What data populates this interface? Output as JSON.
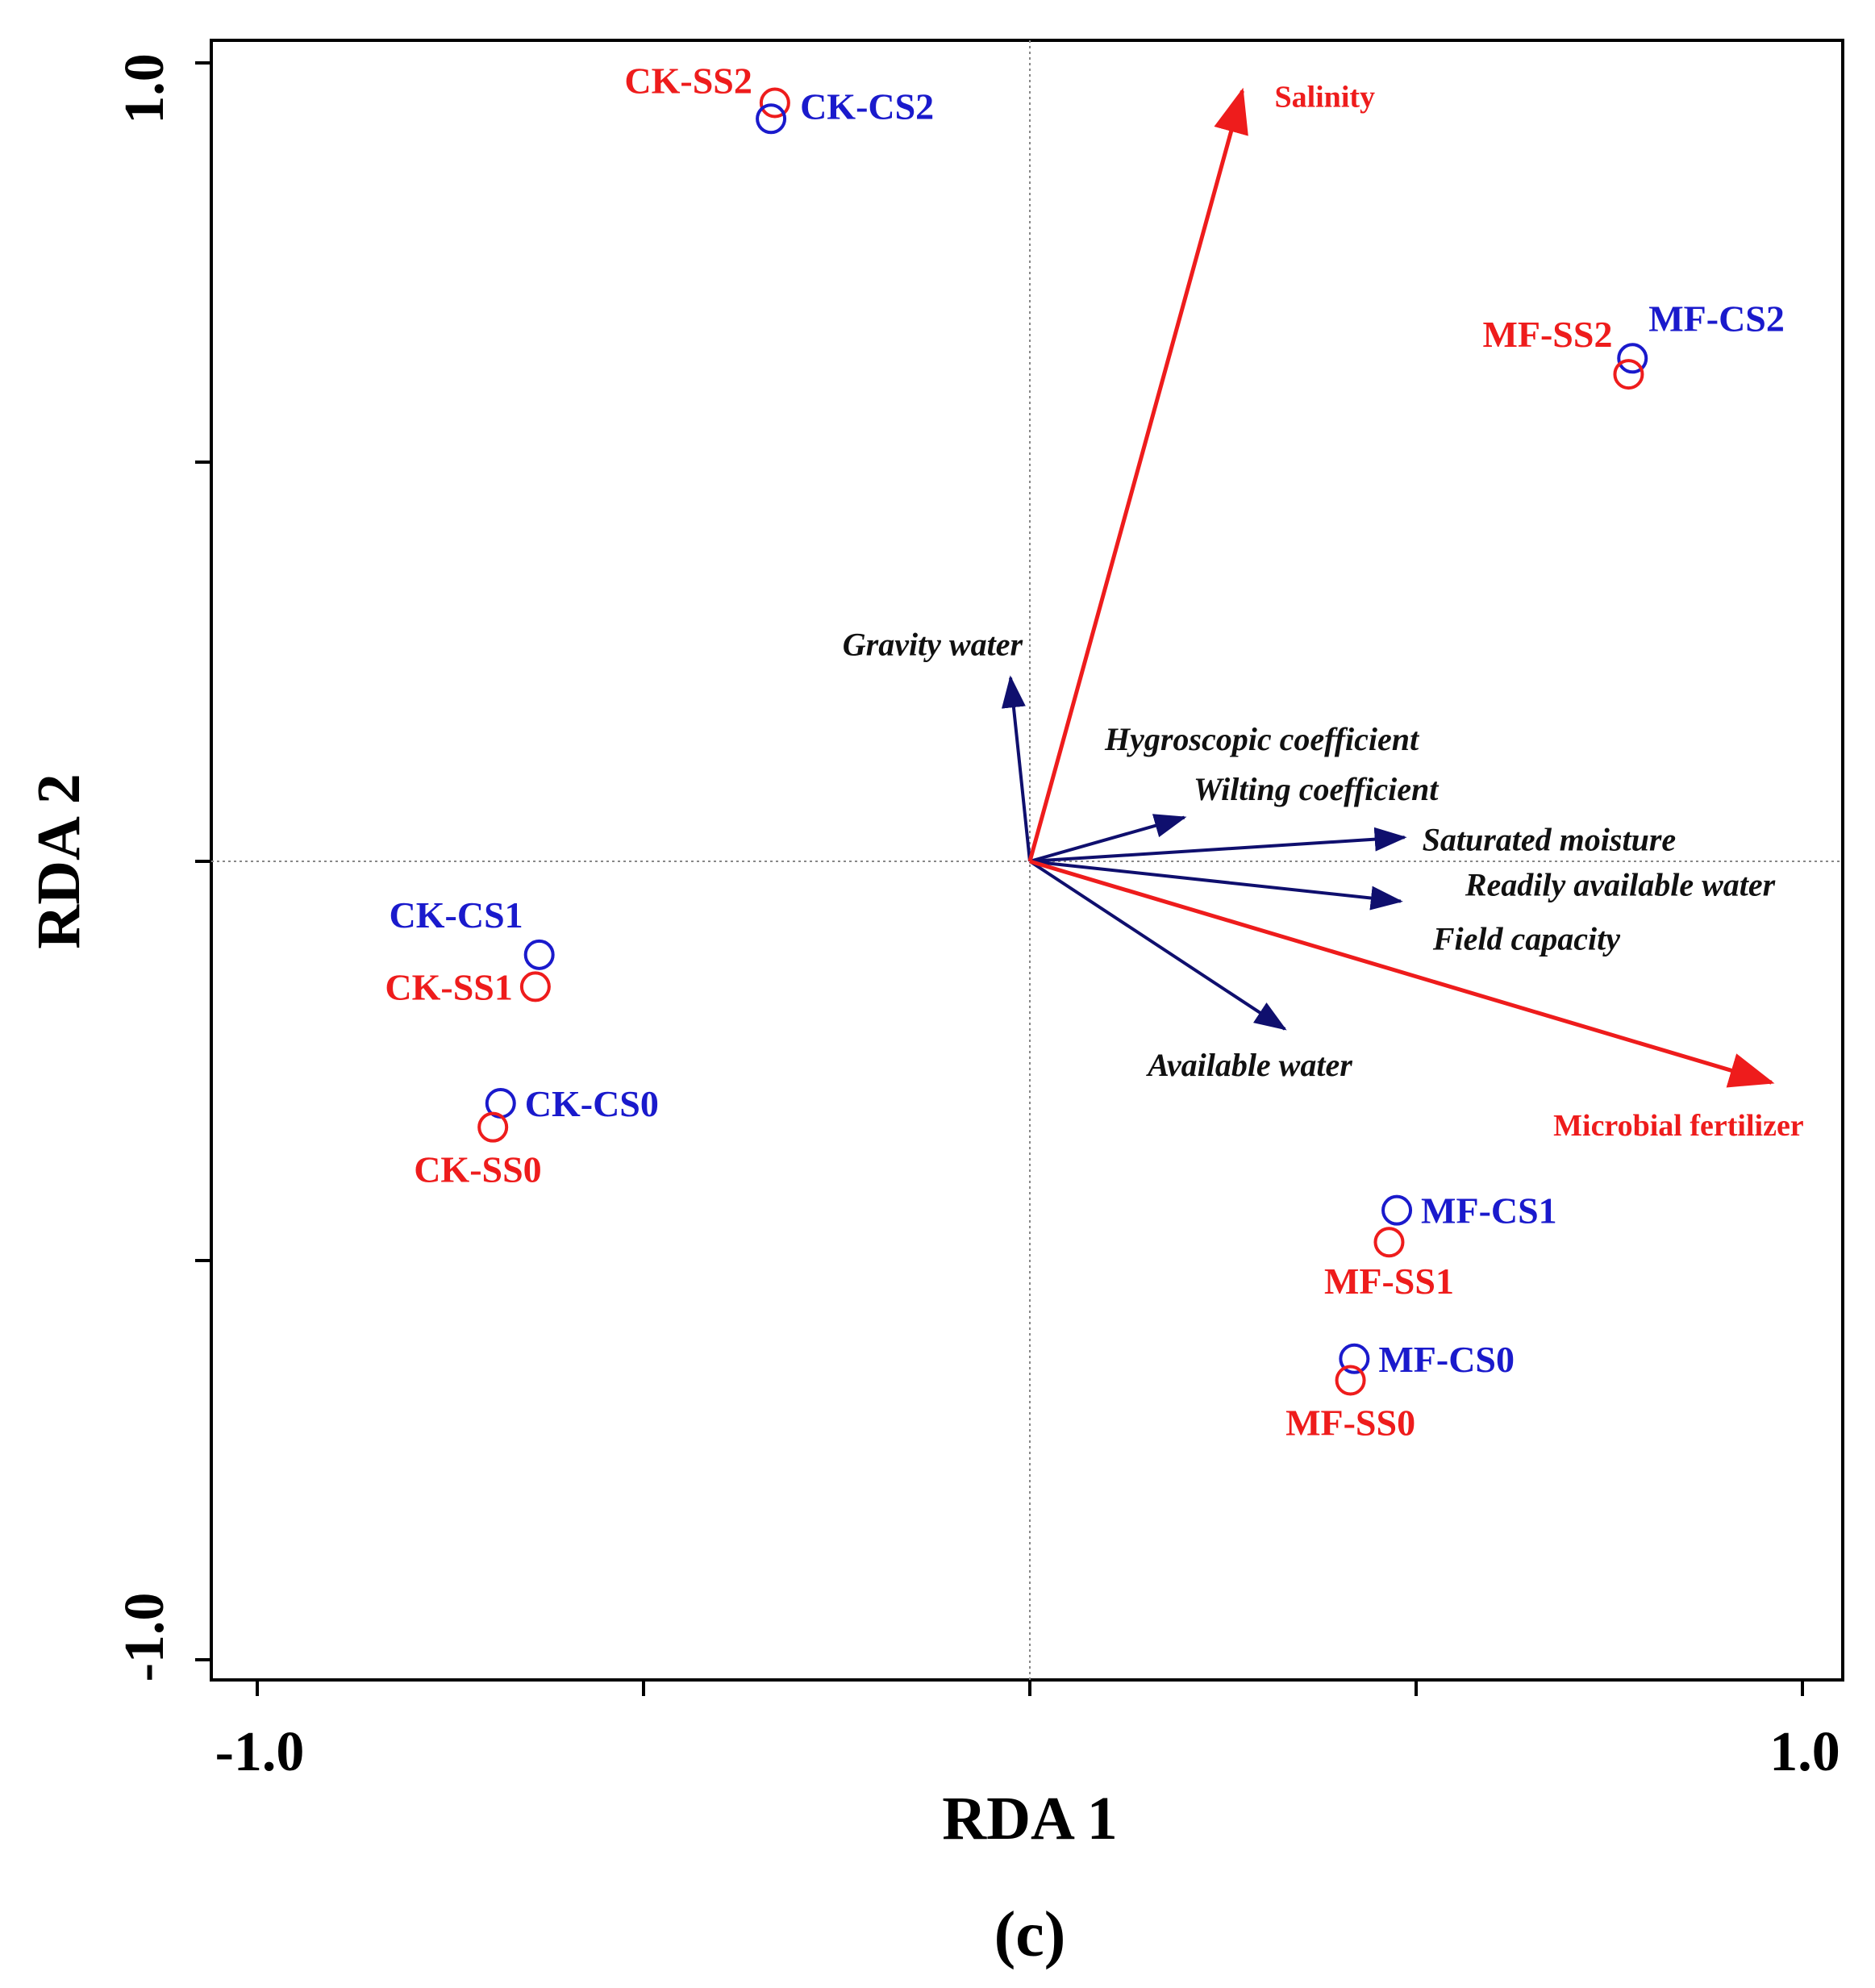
{
  "chart_data": {
    "type": "scatter",
    "subtype": "RDA biplot",
    "xlabel": "RDA 1",
    "ylabel": "RDA 2",
    "panel_label": "(c)",
    "xlim": [
      -1.0,
      1.0
    ],
    "ylim": [
      -1.0,
      1.0
    ],
    "x_tick_labels": [
      "-1.0",
      "1.0"
    ],
    "y_tick_labels": [
      "-1.0",
      "1.0"
    ],
    "x_ticks": [
      -1.0,
      -0.5,
      0.0,
      0.5,
      1.0
    ],
    "y_ticks": [
      -1.0,
      -0.5,
      0.0,
      0.5,
      1.0
    ],
    "colors": {
      "blue": "#1a1acc",
      "red": "#ee1c1c",
      "navy": "#0f0f6e",
      "guide": "#888888"
    },
    "sites": [
      {
        "label": "CK-SS2",
        "x": -0.33,
        "y": 0.95,
        "color": "red"
      },
      {
        "label": "CK-CS2",
        "x": -0.335,
        "y": 0.93,
        "color": "blue"
      },
      {
        "label": "MF-CS2",
        "x": 0.78,
        "y": 0.63,
        "color": "blue"
      },
      {
        "label": "MF-SS2",
        "x": 0.775,
        "y": 0.61,
        "color": "red"
      },
      {
        "label": "CK-CS1",
        "x": -0.635,
        "y": -0.117,
        "color": "blue"
      },
      {
        "label": "CK-SS1",
        "x": -0.64,
        "y": -0.157,
        "color": "red"
      },
      {
        "label": "CK-CS0",
        "x": -0.685,
        "y": -0.303,
        "color": "blue"
      },
      {
        "label": "CK-SS0",
        "x": -0.695,
        "y": -0.333,
        "color": "red"
      },
      {
        "label": "MF-CS1",
        "x": 0.475,
        "y": -0.437,
        "color": "blue"
      },
      {
        "label": "MF-SS1",
        "x": 0.465,
        "y": -0.477,
        "color": "red"
      },
      {
        "label": "MF-CS0",
        "x": 0.42,
        "y": -0.623,
        "color": "blue"
      },
      {
        "label": "MF-SS0",
        "x": 0.415,
        "y": -0.65,
        "color": "red"
      }
    ],
    "environment_arrows": [
      {
        "label": "Salinity",
        "x": 0.275,
        "y": 0.965,
        "color": "red"
      },
      {
        "label": "Microbial fertilizer",
        "x": 0.96,
        "y": -0.277,
        "color": "red"
      }
    ],
    "variable_arrows": [
      {
        "label": "Gravity water",
        "x": -0.025,
        "y": 0.23,
        "color": "navy"
      },
      {
        "label": "Hygroscopic coefficient",
        "x": 0.2,
        "y": 0.055,
        "color": "navy"
      },
      {
        "label": "Wilting coefficient",
        "x": 0.2,
        "y": 0.055,
        "color": "navy"
      },
      {
        "label": "Saturated moisture",
        "x": 0.485,
        "y": 0.03,
        "color": "navy"
      },
      {
        "label": "Readily available water",
        "x": 0.48,
        "y": -0.05,
        "color": "navy"
      },
      {
        "label": "Field capacity",
        "x": 0.48,
        "y": -0.05,
        "color": "navy"
      },
      {
        "label": "Available water",
        "x": 0.33,
        "y": -0.21,
        "color": "navy"
      }
    ]
  }
}
